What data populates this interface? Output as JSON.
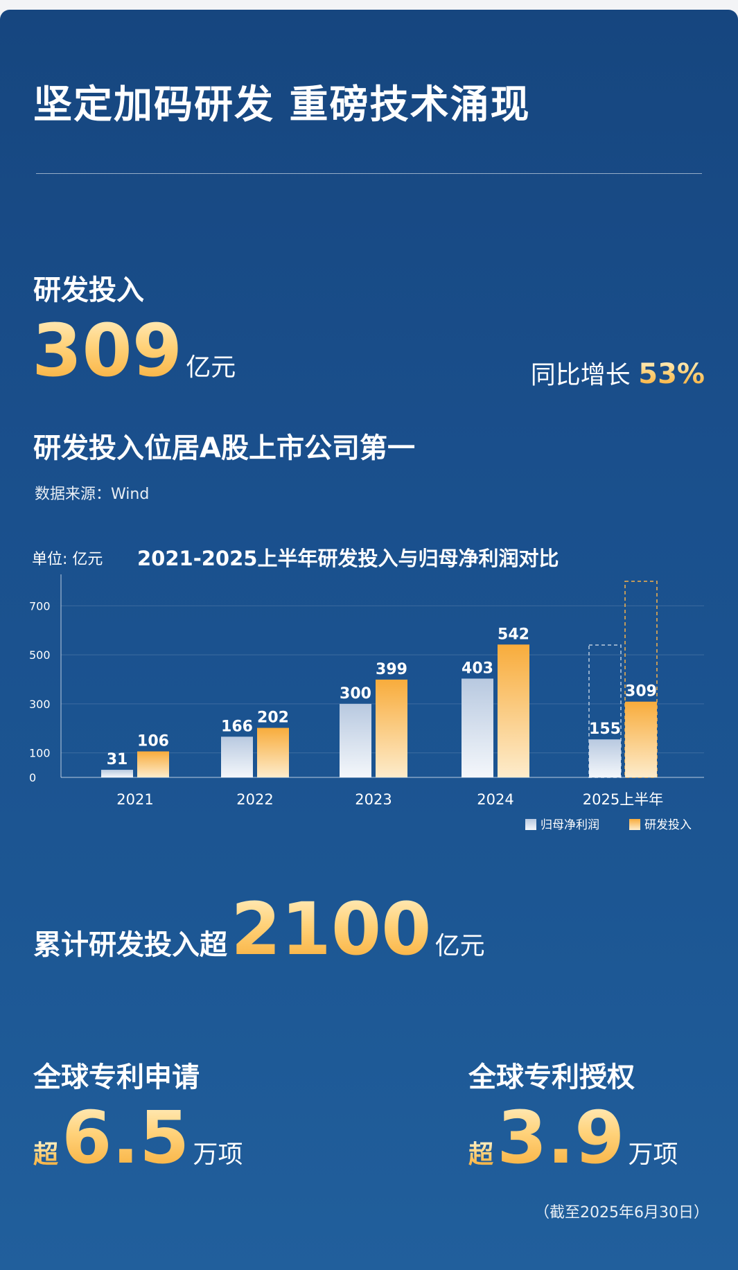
{
  "header": {
    "title": "坚定加码研发 重磅技术涌现"
  },
  "rd": {
    "label": "研发投入",
    "value": "309",
    "unit": "亿元",
    "yoy_label": "同比增长",
    "yoy_value": "53%",
    "rank_text": "研发投入位居A股上市公司第一",
    "source": "数据来源：Wind"
  },
  "chart_data": {
    "type": "bar",
    "unit_label": "单位: 亿元",
    "title": "2021-2025上半年研发投入与归母净利润对比",
    "categories": [
      "2021",
      "2022",
      "2023",
      "2024",
      "2025上半年"
    ],
    "series": [
      {
        "name": "归母净利润",
        "values": [
          31,
          166,
          300,
          403,
          155
        ],
        "color": "#cdd9ea"
      },
      {
        "name": "研发投入",
        "values": [
          106,
          202,
          399,
          542,
          309
        ],
        "color": "#f8b24a"
      }
    ],
    "yticks": [
      0,
      100,
      300,
      500,
      700
    ],
    "ylim": [
      0,
      800
    ],
    "grid": true,
    "legend": "bottom-right",
    "dashed_outline_last": {
      "series0": 540,
      "series1": 800
    }
  },
  "cumulative": {
    "prefix": "累计研发投入超",
    "value": "2100",
    "unit": "亿元"
  },
  "patents": {
    "apply_label": "全球专利申请",
    "apply_prefix": "超",
    "apply_value": "6.5",
    "apply_unit": "万项",
    "grant_label": "全球专利授权",
    "grant_prefix": "超",
    "grant_value": "3.9",
    "grant_unit": "万项"
  },
  "footnote": "（截至2025年6月30日）"
}
